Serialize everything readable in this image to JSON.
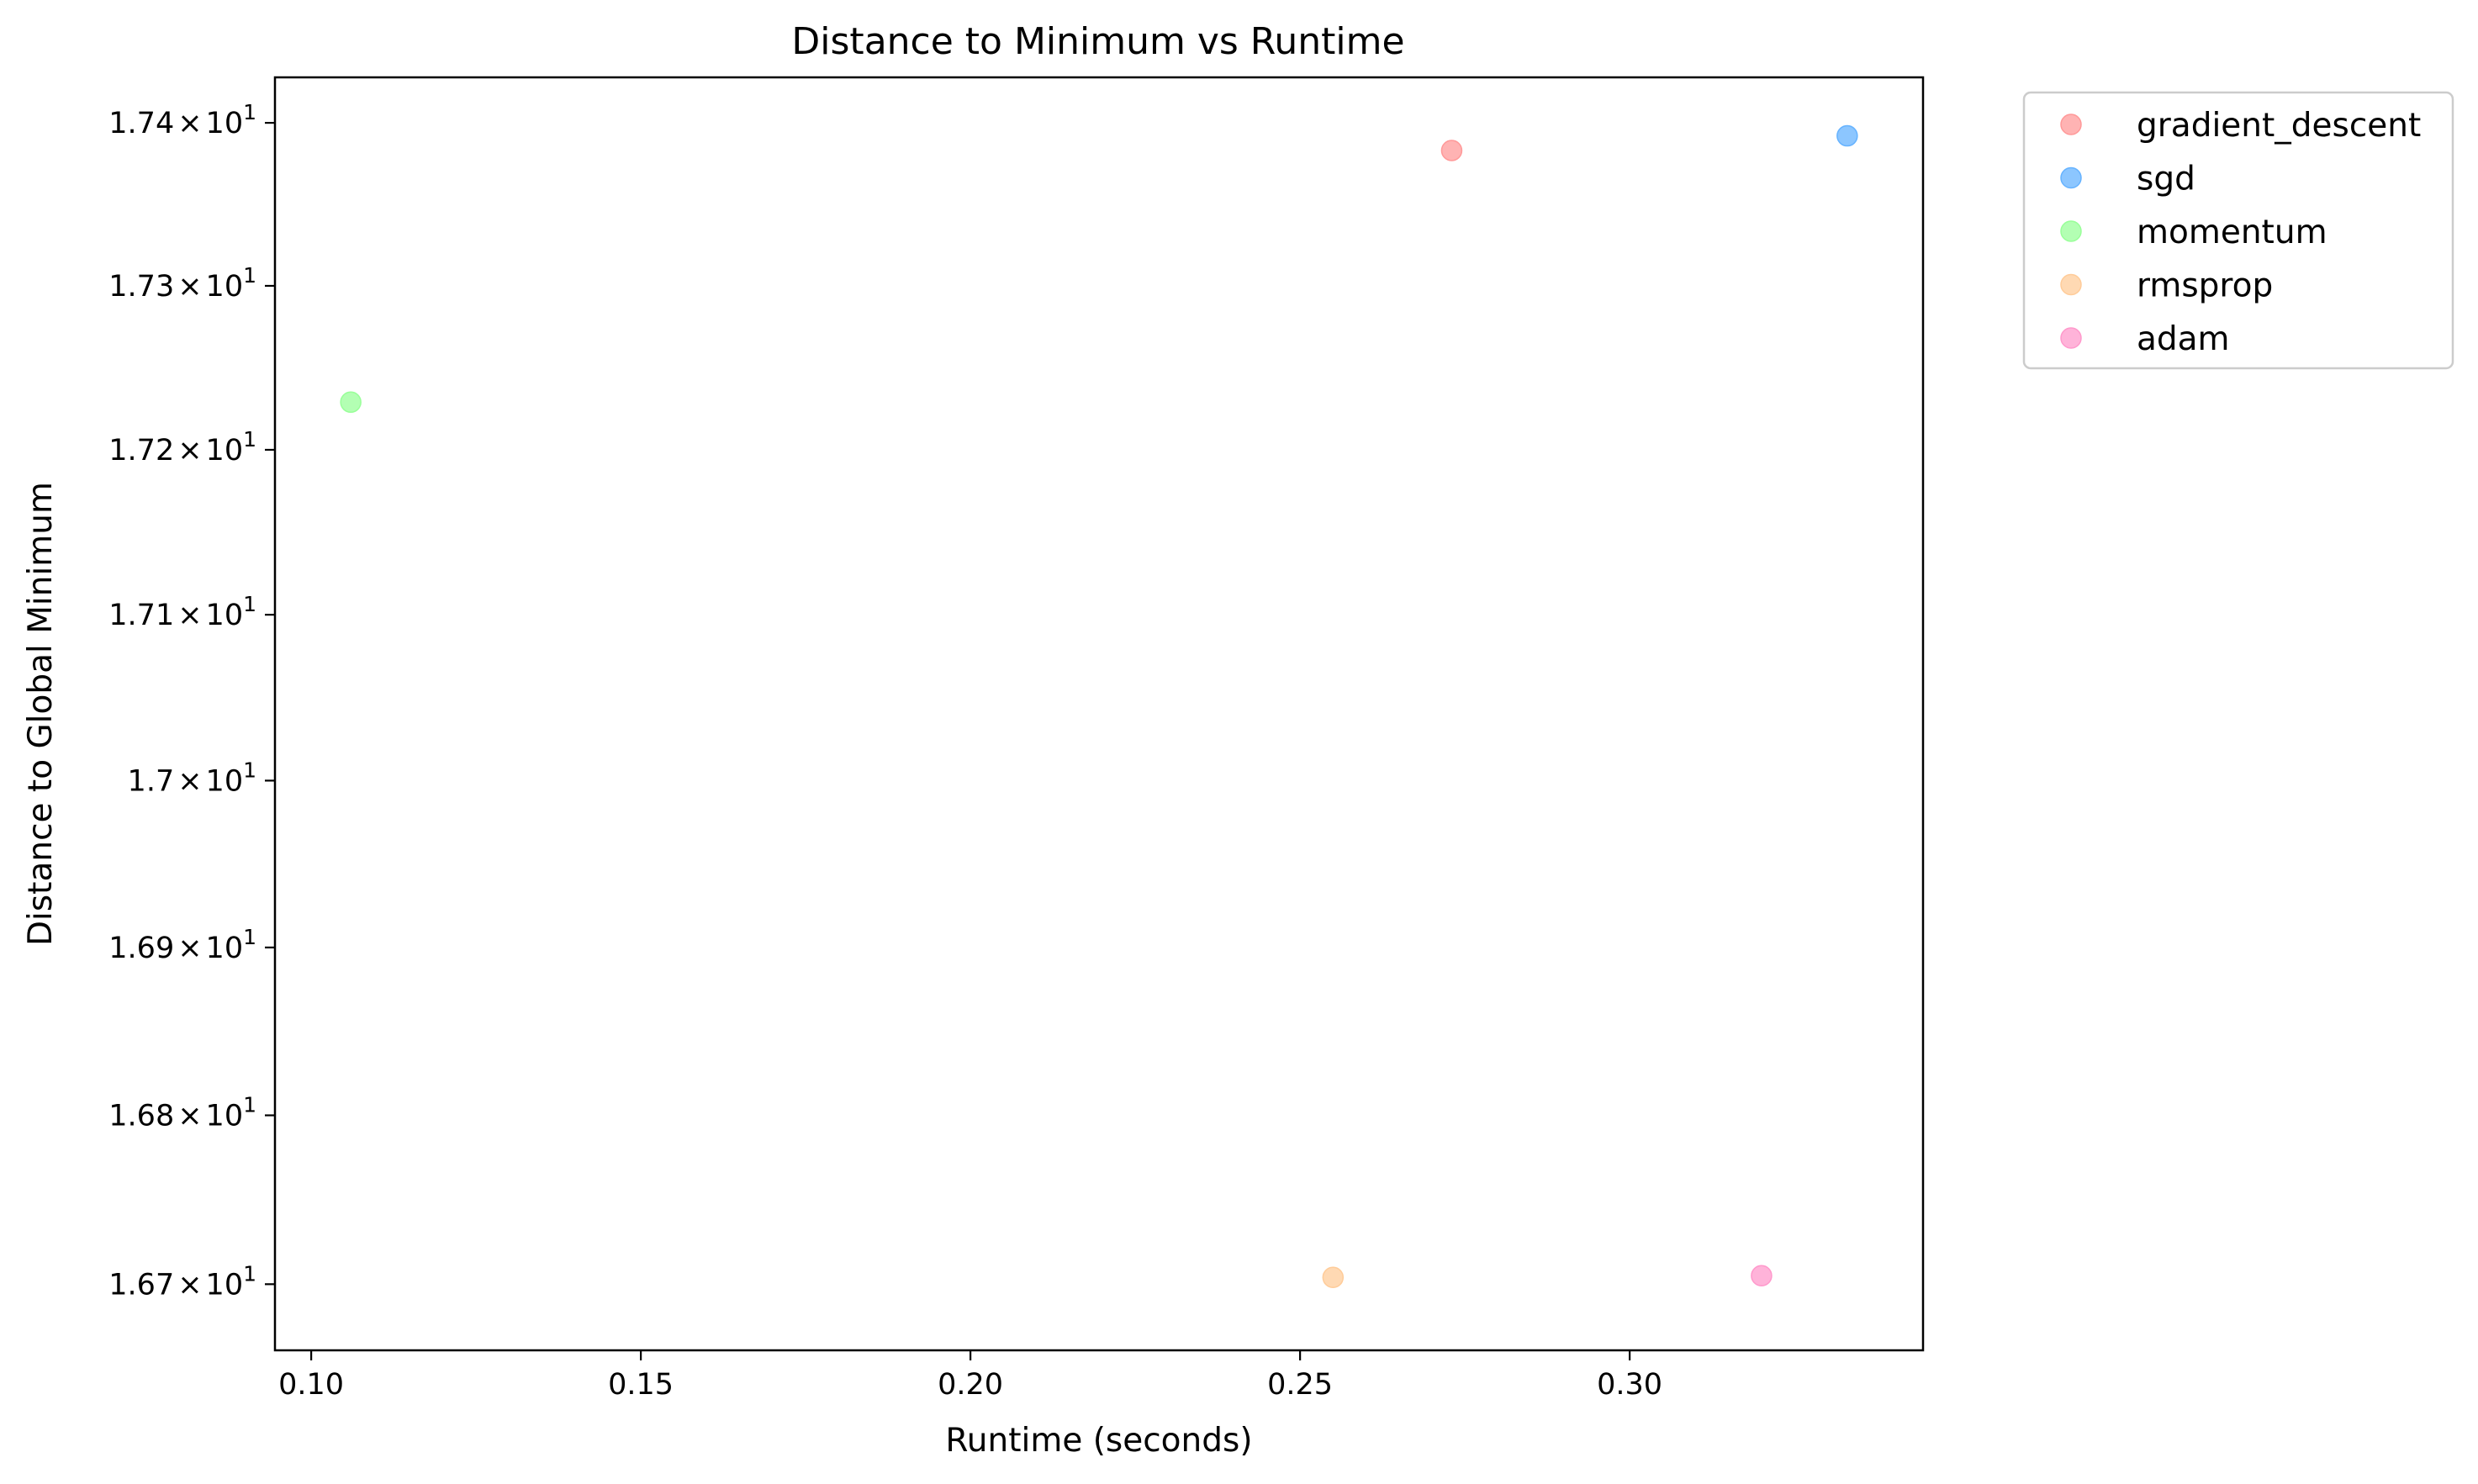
{
  "chart_data": {
    "type": "scatter",
    "title": "Distance to Minimum vs Runtime",
    "xlabel": "Runtime (seconds)",
    "ylabel": "Distance to Global Minimum",
    "y_scale": "log",
    "xlim": [
      0.0945,
      0.3445
    ],
    "ylim": [
      16.661,
      17.428
    ],
    "x_ticks": [
      0.1,
      0.15,
      0.2,
      0.25,
      0.3
    ],
    "x_tick_labels": [
      "0.10",
      "0.15",
      "0.20",
      "0.25",
      "0.30"
    ],
    "y_ticks": [
      {
        "value": 16.7,
        "mantissa": "1.67",
        "times": "×",
        "base": "10",
        "exp": "1"
      },
      {
        "value": 16.8,
        "mantissa": "1.68",
        "times": "×",
        "base": "10",
        "exp": "1"
      },
      {
        "value": 16.9,
        "mantissa": "1.69",
        "times": "×",
        "base": "10",
        "exp": "1"
      },
      {
        "value": 17.0,
        "mantissa": "1.7",
        "times": "×",
        "base": "10",
        "exp": "1"
      },
      {
        "value": 17.1,
        "mantissa": "1.71",
        "times": "×",
        "base": "10",
        "exp": "1"
      },
      {
        "value": 17.2,
        "mantissa": "1.72",
        "times": "×",
        "base": "10",
        "exp": "1"
      },
      {
        "value": 17.3,
        "mantissa": "1.73",
        "times": "×",
        "base": "10",
        "exp": "1"
      },
      {
        "value": 17.4,
        "mantissa": "1.74",
        "times": "×",
        "base": "10",
        "exp": "1"
      }
    ],
    "grid": false,
    "legend_position": "outside-top-right",
    "series": [
      {
        "name": "gradient_descent",
        "color": "#ff9999",
        "points": [
          {
            "x": 0.273,
            "y": 17.383
          }
        ]
      },
      {
        "name": "sgd",
        "color": "#66b3ff",
        "points": [
          {
            "x": 0.333,
            "y": 17.392
          }
        ]
      },
      {
        "name": "momentum",
        "color": "#99ff99",
        "points": [
          {
            "x": 0.106,
            "y": 17.229
          }
        ]
      },
      {
        "name": "rmsprop",
        "color": "#ffcc99",
        "points": [
          {
            "x": 0.255,
            "y": 16.704
          }
        ]
      },
      {
        "name": "adam",
        "color": "#ff99cc",
        "points": [
          {
            "x": 0.32,
            "y": 16.705
          }
        ]
      }
    ]
  }
}
